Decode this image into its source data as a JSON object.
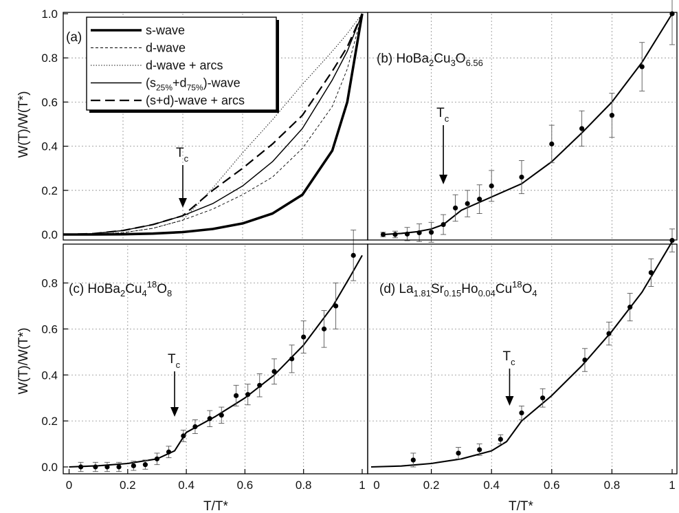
{
  "figure": {
    "xlabel": "T/T*",
    "ylabel": "W(T)/W(T*)",
    "colors": {
      "line": "#000000",
      "grid": "#8a8a8a",
      "frame": "#000000",
      "background": "#ffffff"
    }
  },
  "chart_data": [
    {
      "panel": "a",
      "type": "line",
      "label": "(a)",
      "annotation": {
        "text": "T",
        "subscript": "c",
        "x": 0.4
      },
      "xlim": [
        0,
        1
      ],
      "ylim": [
        -0.01,
        1.0
      ],
      "xticks": [],
      "yticks": [
        0.0,
        0.2,
        0.4,
        0.6,
        0.8,
        1.0
      ],
      "ytick_labels": [
        "0.0",
        "0.2",
        "0.4",
        "0.6",
        "0.8",
        "1.0"
      ],
      "grid": true,
      "legend_position": "top-left",
      "series": [
        {
          "name": "s-wave",
          "style": "thick-solid",
          "x": [
            0,
            0.1,
            0.2,
            0.3,
            0.4,
            0.5,
            0.6,
            0.7,
            0.8,
            0.9,
            0.95,
            1.0
          ],
          "y": [
            0,
            0,
            0.001,
            0.004,
            0.011,
            0.025,
            0.05,
            0.095,
            0.18,
            0.38,
            0.6,
            1.0
          ]
        },
        {
          "name": "d-wave",
          "style": "thin-dashed",
          "x": [
            0,
            0.1,
            0.2,
            0.3,
            0.4,
            0.5,
            0.6,
            0.7,
            0.8,
            0.9,
            0.95,
            1.0
          ],
          "y": [
            0,
            0.001,
            0.008,
            0.028,
            0.065,
            0.115,
            0.18,
            0.26,
            0.39,
            0.58,
            0.75,
            1.0
          ]
        },
        {
          "name": "d-wave + arcs",
          "style": "dotted",
          "x": [
            0,
            0.1,
            0.2,
            0.3,
            0.4,
            0.5,
            0.6,
            0.7,
            0.8,
            0.9,
            0.95,
            1.0
          ],
          "y": [
            0,
            0.001,
            0.008,
            0.028,
            0.065,
            0.21,
            0.37,
            0.52,
            0.68,
            0.83,
            0.91,
            1.0
          ]
        },
        {
          "name": "(s25%+d75%)-wave",
          "name_parts": {
            "base": "s",
            "sub1": "25%",
            "mid": "+d",
            "sub2": "75%",
            "tail": "-wave"
          },
          "legend_wrap": [
            "(",
            ")"
          ],
          "style": "solid",
          "x": [
            0,
            0.1,
            0.2,
            0.3,
            0.4,
            0.5,
            0.6,
            0.7,
            0.8,
            0.9,
            0.95,
            1.0
          ],
          "y": [
            0,
            0.004,
            0.018,
            0.045,
            0.085,
            0.14,
            0.22,
            0.33,
            0.48,
            0.7,
            0.83,
            1.0
          ]
        },
        {
          "name": "(s+d)-wave + arcs",
          "style": "long-dashed",
          "x": [
            0,
            0.1,
            0.2,
            0.3,
            0.4,
            0.5,
            0.6,
            0.7,
            0.8,
            0.9,
            0.95,
            1.0
          ],
          "y": [
            0,
            0.004,
            0.018,
            0.045,
            0.085,
            0.2,
            0.3,
            0.41,
            0.54,
            0.74,
            0.85,
            1.0
          ]
        }
      ]
    },
    {
      "panel": "b",
      "type": "scatter",
      "label": "(b) HoBa",
      "formula": [
        {
          "t": "(b) HoBa"
        },
        {
          "s": "2"
        },
        {
          "t": "Cu"
        },
        {
          "s": "3"
        },
        {
          "t": "O"
        },
        {
          "s": "6.56"
        }
      ],
      "annotation": {
        "text": "T",
        "subscript": "c",
        "x": 0.24
      },
      "xlim": [
        0,
        1
      ],
      "ylim": [
        -0.01,
        1.0
      ],
      "grid": true,
      "points": {
        "x": [
          0.04,
          0.08,
          0.12,
          0.16,
          0.2,
          0.24,
          0.28,
          0.32,
          0.36,
          0.4,
          0.5,
          0.6,
          0.7,
          0.8,
          0.9,
          1.0
        ],
        "y": [
          0.0,
          0.0,
          0.002,
          0.008,
          0.01,
          0.045,
          0.12,
          0.14,
          0.16,
          0.22,
          0.26,
          0.41,
          0.48,
          0.54,
          0.76,
          1.0
        ],
        "err": [
          0.01,
          0.015,
          0.03,
          0.04,
          0.045,
          0.045,
          0.06,
          0.06,
          0.065,
          0.07,
          0.075,
          0.085,
          0.08,
          0.1,
          0.11,
          0.14
        ]
      },
      "fit": {
        "x": [
          0.04,
          0.1,
          0.15,
          0.2,
          0.24,
          0.3,
          0.4,
          0.5,
          0.6,
          0.7,
          0.8,
          0.9,
          1.0
        ],
        "y": [
          0.0,
          0.005,
          0.012,
          0.025,
          0.045,
          0.11,
          0.17,
          0.23,
          0.33,
          0.46,
          0.6,
          0.78,
          1.0
        ]
      }
    },
    {
      "panel": "c",
      "type": "scatter",
      "label": "(c) HoBa",
      "formula": [
        {
          "t": "(c) HoBa"
        },
        {
          "s": "2"
        },
        {
          "t": "Cu"
        },
        {
          "s": "4"
        },
        {
          "sup": "18"
        },
        {
          "t": "O"
        },
        {
          "s": "8"
        }
      ],
      "annotation": {
        "text": "T",
        "subscript": "c",
        "x": 0.36
      },
      "xlim": [
        -0.02,
        1.0
      ],
      "ylim": [
        -0.02,
        0.96
      ],
      "xticks": [
        0,
        0.2,
        0.4,
        0.6,
        0.8,
        1.0
      ],
      "xtick_labels": [
        "0",
        "0.2",
        "0.4",
        "0.6",
        "0.8",
        "1"
      ],
      "yticks": [
        0.0,
        0.2,
        0.4,
        0.6,
        0.8
      ],
      "ytick_labels": [
        "0.0",
        "0.2",
        "0.4",
        "0.6",
        "0.8"
      ],
      "grid": true,
      "points": {
        "x": [
          0.04,
          0.09,
          0.13,
          0.17,
          0.22,
          0.26,
          0.3,
          0.34,
          0.39,
          0.43,
          0.48,
          0.52,
          0.57,
          0.61,
          0.65,
          0.7,
          0.76,
          0.8,
          0.87,
          0.91,
          0.97
        ],
        "y": [
          0.0,
          0.0,
          0.0,
          0.0,
          0.005,
          0.01,
          0.035,
          0.065,
          0.135,
          0.175,
          0.21,
          0.225,
          0.31,
          0.315,
          0.355,
          0.415,
          0.47,
          0.565,
          0.6,
          0.7,
          0.92
        ],
        "err": [
          0.02,
          0.02,
          0.02,
          0.02,
          0.02,
          0.02,
          0.025,
          0.025,
          0.025,
          0.03,
          0.035,
          0.035,
          0.045,
          0.045,
          0.05,
          0.055,
          0.06,
          0.07,
          0.08,
          0.1,
          0.11
        ]
      },
      "fit": {
        "x": [
          0.0,
          0.1,
          0.2,
          0.3,
          0.36,
          0.4,
          0.5,
          0.6,
          0.7,
          0.8,
          0.9,
          0.96,
          1.0
        ],
        "y": [
          0.0,
          0.005,
          0.015,
          0.035,
          0.07,
          0.15,
          0.22,
          0.3,
          0.4,
          0.53,
          0.7,
          0.83,
          0.92
        ]
      }
    },
    {
      "panel": "d",
      "type": "scatter",
      "label": "(d) La",
      "formula": [
        {
          "t": "(d) La"
        },
        {
          "s": "1.81"
        },
        {
          "t": "Sr"
        },
        {
          "s": "0.15"
        },
        {
          "t": "Ho"
        },
        {
          "s": "0.04"
        },
        {
          "t": "Cu"
        },
        {
          "sup": "18"
        },
        {
          "t": "O"
        },
        {
          "s": "4"
        }
      ],
      "annotation": {
        "text": "T",
        "subscript": "c",
        "x": 0.46
      },
      "xlim": [
        0,
        1
      ],
      "ylim": [
        -0.02,
        0.96
      ],
      "xticks": [
        0.2,
        0.4,
        0.6,
        0.8,
        1.0
      ],
      "xtick_labels": [
        "0.2",
        "0.4",
        "0.6",
        "0.8",
        "1"
      ],
      "grid": true,
      "points": {
        "x": [
          0.14,
          0.29,
          0.36,
          0.43,
          0.5,
          0.57,
          0.71,
          0.79,
          0.86,
          0.93,
          1.0
        ],
        "y": [
          0.03,
          0.06,
          0.075,
          0.12,
          0.235,
          0.3,
          0.465,
          0.58,
          0.695,
          0.845,
          0.985
        ],
        "err": [
          0.03,
          0.025,
          0.025,
          0.02,
          0.03,
          0.04,
          0.05,
          0.05,
          0.06,
          0.06,
          0.05
        ]
      },
      "fit": {
        "x": [
          0.0,
          0.1,
          0.2,
          0.3,
          0.4,
          0.45,
          0.5,
          0.6,
          0.7,
          0.8,
          0.9,
          1.0
        ],
        "y": [
          0.0,
          0.004,
          0.015,
          0.035,
          0.07,
          0.11,
          0.2,
          0.31,
          0.44,
          0.59,
          0.76,
          0.98
        ]
      }
    }
  ]
}
